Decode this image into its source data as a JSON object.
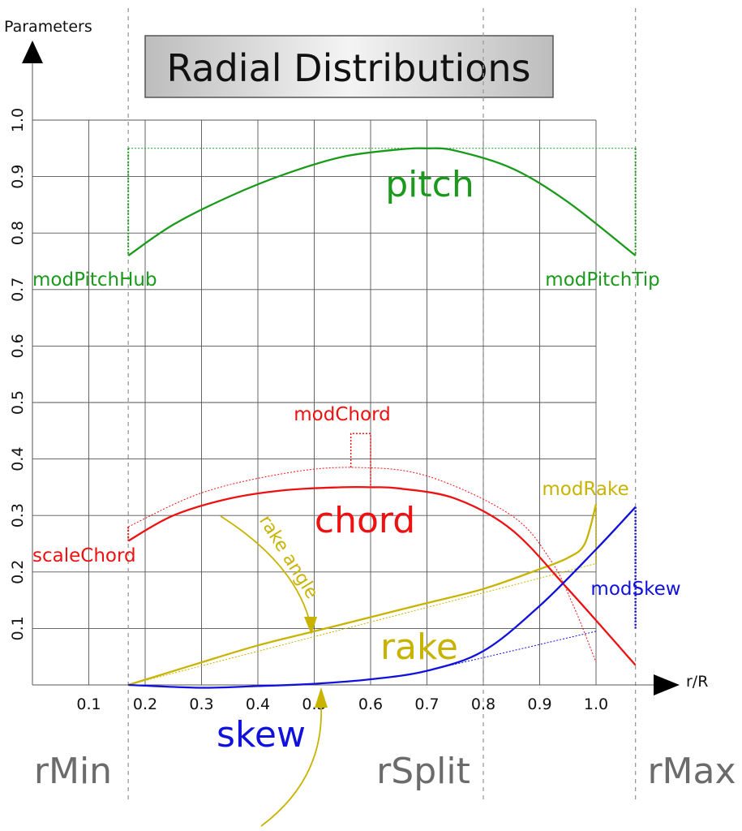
{
  "chart_data": {
    "type": "line",
    "title": "Radial Distributions",
    "xlabel": "r/R",
    "ylabel": "Parameters",
    "xlim": [
      0,
      1.0
    ],
    "ylim": [
      0,
      1.0
    ],
    "grid": true,
    "x_ticks": [
      0.1,
      0.2,
      0.3,
      0.4,
      0.5,
      0.6,
      0.7,
      0.8,
      0.9,
      1.0
    ],
    "x_tick_labels": [
      "0.1",
      "0.2",
      "0.3",
      "0.4",
      "0.5",
      "0.6",
      "0.7",
      "0.8",
      "0.9",
      "1.0"
    ],
    "y_ticks": [
      0.1,
      0.2,
      0.3,
      0.4,
      0.5,
      0.6,
      0.7,
      0.8,
      0.9,
      1.0
    ],
    "y_tick_labels": [
      "0.1",
      "0.2",
      "0.3",
      "0.4",
      "0.5",
      "0.6",
      "0.7",
      "0.8",
      "0.9",
      "1.0"
    ],
    "regions": [
      {
        "label": "rMin",
        "x": 0.17
      },
      {
        "label": "rSplit",
        "x": 0.8
      },
      {
        "label": "rMax",
        "x": 1.07
      }
    ],
    "colors": {
      "pitch": "#1a9a1a",
      "chord": "#ee1111",
      "rake": "#c8b400",
      "skew": "#1111dd"
    },
    "series": [
      {
        "name": "pitch",
        "x": [
          0.17,
          0.25,
          0.35,
          0.45,
          0.55,
          0.65,
          0.7,
          0.75,
          0.85,
          0.95,
          1.07
        ],
        "y": [
          0.76,
          0.815,
          0.865,
          0.905,
          0.935,
          0.948,
          0.95,
          0.946,
          0.915,
          0.855,
          0.76
        ]
      },
      {
        "name": "chord",
        "x": [
          0.17,
          0.25,
          0.35,
          0.45,
          0.55,
          0.6,
          0.65,
          0.75,
          0.85,
          0.95,
          1.07
        ],
        "y": [
          0.255,
          0.3,
          0.33,
          0.345,
          0.35,
          0.35,
          0.348,
          0.33,
          0.275,
          0.17,
          0.035
        ]
      },
      {
        "name": "rake",
        "x": [
          0.17,
          0.3,
          0.4,
          0.5,
          0.6,
          0.7,
          0.8,
          0.9,
          0.95,
          0.98,
          1.0
        ],
        "y": [
          0.0,
          0.04,
          0.07,
          0.095,
          0.12,
          0.145,
          0.17,
          0.205,
          0.225,
          0.25,
          0.32
        ]
      },
      {
        "name": "skew",
        "x": [
          0.17,
          0.3,
          0.4,
          0.5,
          0.6,
          0.7,
          0.8,
          0.9,
          1.0,
          1.07
        ],
        "y": [
          0.0,
          -0.005,
          -0.002,
          0.002,
          0.01,
          0.025,
          0.06,
          0.14,
          0.24,
          0.315
        ]
      }
    ],
    "reference_lines": {
      "pitch_max": {
        "x": [
          0.17,
          1.07
        ],
        "y": [
          0.95,
          0.95
        ]
      },
      "chord_unscaled": {
        "x": [
          0.17,
          0.3,
          0.45,
          0.57,
          0.7,
          0.85,
          0.92,
          0.96,
          1.0
        ],
        "y": [
          0.28,
          0.34,
          0.375,
          0.385,
          0.37,
          0.3,
          0.22,
          0.14,
          0.04
        ]
      },
      "rake_linear": {
        "x": [
          0.17,
          1.0
        ],
        "y": [
          0.0,
          0.215
        ]
      },
      "skew_linear": {
        "x": [
          0.7,
          1.0
        ],
        "y": [
          0.025,
          0.095
        ]
      }
    },
    "annotations": [
      {
        "text": "pitch",
        "color": "#1a9a1a"
      },
      {
        "text": "modPitchHub",
        "color": "#1a9a1a"
      },
      {
        "text": "modPitchTip",
        "color": "#1a9a1a"
      },
      {
        "text": "modChord",
        "color": "#ee1111"
      },
      {
        "text": "chord",
        "color": "#ee1111"
      },
      {
        "text": "scaleChord",
        "color": "#ee1111"
      },
      {
        "text": "rake angle",
        "color": "#c8b400"
      },
      {
        "text": "modRake",
        "color": "#c8b400"
      },
      {
        "text": "rake",
        "color": "#c8b400"
      },
      {
        "text": "modSkew",
        "color": "#1111dd"
      },
      {
        "text": "skew",
        "color": "#1111dd"
      }
    ]
  }
}
